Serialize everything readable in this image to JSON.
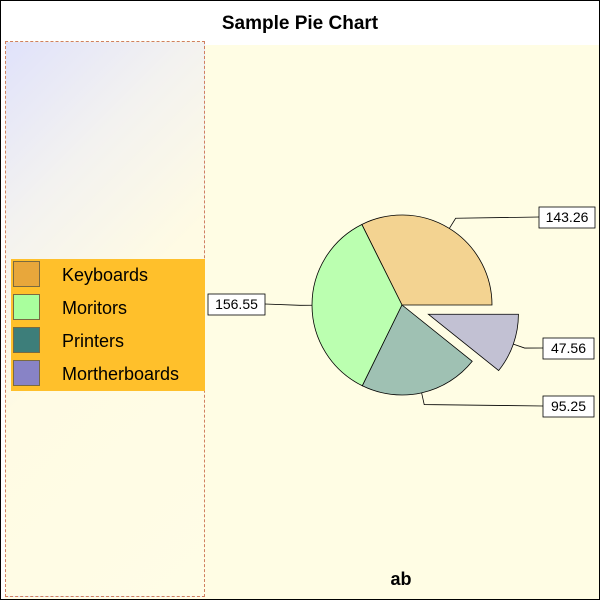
{
  "chart_data": {
    "type": "pie",
    "title": "Sample Pie Chart",
    "footnote": "ab",
    "categories": [
      "Keyboards",
      "Moritors",
      "Printers",
      "Mortherboards"
    ],
    "values": [
      143.26,
      156.55,
      95.25,
      47.56
    ],
    "value_labels": [
      "143.26",
      "156.55",
      "95.25",
      "47.56"
    ],
    "exploded": [
      false,
      false,
      false,
      true
    ],
    "slice_colors": [
      "#f3d391",
      "#bbffb0",
      "#9fc1b3",
      "#c2c1d3"
    ],
    "legend_colors": [
      "#e8a73b",
      "#a9ff9d",
      "#3d7e7a",
      "#8883c6"
    ],
    "legend_placement": "left"
  }
}
